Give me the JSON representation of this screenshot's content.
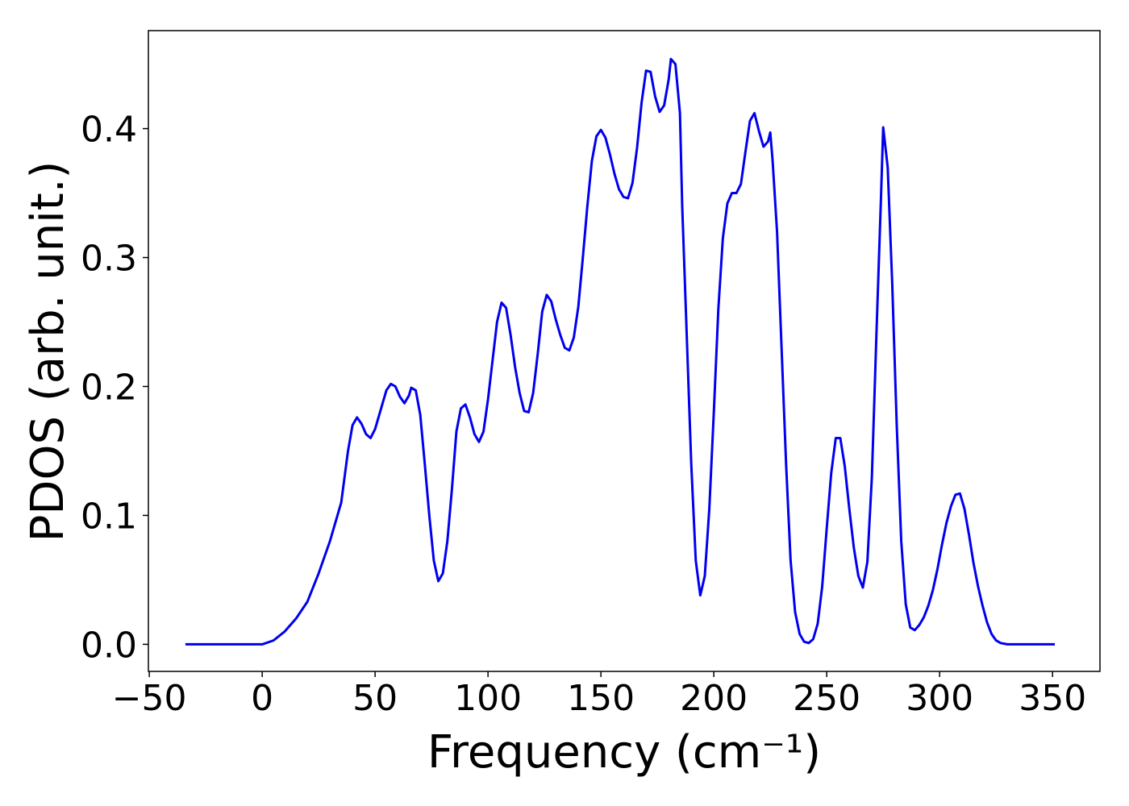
{
  "chart_data": {
    "type": "line",
    "xlabel": "Frequency (cm⁻¹)",
    "ylabel": "PDOS (arb. unit.)",
    "xlim": [
      -50.4,
      371
    ],
    "ylim": [
      -0.021,
      0.476
    ],
    "xticks": [
      {
        "value": -50,
        "label": "−50"
      },
      0,
      50,
      100,
      150,
      200,
      250,
      300,
      350
    ],
    "yticks": [
      {
        "value": 0,
        "label": "0.0"
      },
      0.1,
      0.2,
      0.3,
      0.4
    ],
    "x": [
      -34,
      0,
      5,
      10,
      15,
      20,
      25,
      30,
      35,
      38,
      40,
      42,
      44,
      46,
      48,
      50,
      53,
      55,
      57,
      59,
      61,
      63,
      65,
      66,
      68,
      70,
      72,
      74,
      76,
      78,
      80,
      82,
      84,
      86,
      88,
      90,
      92,
      94,
      96,
      98,
      100,
      102,
      104,
      106,
      108,
      110,
      112,
      114,
      116,
      118,
      120,
      122,
      124,
      126,
      128,
      130,
      132,
      134,
      136,
      138,
      140,
      142,
      144,
      146,
      148,
      150,
      152,
      154,
      156,
      158,
      160,
      162,
      164,
      166,
      168,
      170,
      172,
      174,
      176,
      178,
      180,
      181,
      183,
      185,
      186,
      188,
      190,
      192,
      194,
      196,
      198,
      200,
      202,
      204,
      206,
      208,
      210,
      212,
      214,
      216,
      218,
      220,
      222,
      224,
      225,
      226,
      228,
      230,
      232,
      234,
      236,
      238,
      240,
      242,
      244,
      246,
      248,
      250,
      252,
      254,
      256,
      258,
      260,
      262,
      264,
      266,
      268,
      270,
      272,
      274,
      275,
      277,
      279,
      281,
      283,
      285,
      287,
      289,
      291,
      293,
      295,
      297,
      299,
      301,
      303,
      305,
      307,
      309,
      311,
      313,
      315,
      317,
      319,
      321,
      323,
      325,
      327,
      330,
      351
    ],
    "series": [
      {
        "name": "PDOS",
        "color": "#0000ee",
        "values": [
          0,
          0,
          0.003,
          0.01,
          0.02,
          0.033,
          0.055,
          0.08,
          0.11,
          0.15,
          0.17,
          0.176,
          0.171,
          0.163,
          0.16,
          0.167,
          0.185,
          0.197,
          0.202,
          0.2,
          0.192,
          0.187,
          0.193,
          0.199,
          0.197,
          0.178,
          0.14,
          0.1,
          0.065,
          0.049,
          0.055,
          0.08,
          0.12,
          0.165,
          0.183,
          0.186,
          0.176,
          0.163,
          0.157,
          0.165,
          0.19,
          0.22,
          0.25,
          0.265,
          0.261,
          0.24,
          0.215,
          0.195,
          0.181,
          0.18,
          0.195,
          0.225,
          0.258,
          0.271,
          0.266,
          0.252,
          0.24,
          0.23,
          0.228,
          0.238,
          0.262,
          0.3,
          0.34,
          0.375,
          0.394,
          0.399,
          0.393,
          0.38,
          0.365,
          0.353,
          0.347,
          0.346,
          0.358,
          0.385,
          0.42,
          0.445,
          0.444,
          0.425,
          0.413,
          0.418,
          0.438,
          0.454,
          0.45,
          0.412,
          0.34,
          0.24,
          0.14,
          0.065,
          0.038,
          0.053,
          0.105,
          0.18,
          0.26,
          0.315,
          0.342,
          0.35,
          0.35,
          0.357,
          0.382,
          0.406,
          0.412,
          0.398,
          0.386,
          0.39,
          0.397,
          0.376,
          0.32,
          0.23,
          0.14,
          0.065,
          0.025,
          0.008,
          0.002,
          0.001,
          0.004,
          0.016,
          0.045,
          0.09,
          0.133,
          0.16,
          0.16,
          0.138,
          0.105,
          0.075,
          0.053,
          0.044,
          0.064,
          0.13,
          0.24,
          0.345,
          0.401,
          0.37,
          0.28,
          0.17,
          0.08,
          0.031,
          0.013,
          0.011,
          0.015,
          0.021,
          0.03,
          0.042,
          0.058,
          0.077,
          0.094,
          0.107,
          0.116,
          0.117,
          0.105,
          0.085,
          0.063,
          0.045,
          0.03,
          0.017,
          0.008,
          0.003,
          0.001,
          0,
          0
        ]
      }
    ]
  }
}
